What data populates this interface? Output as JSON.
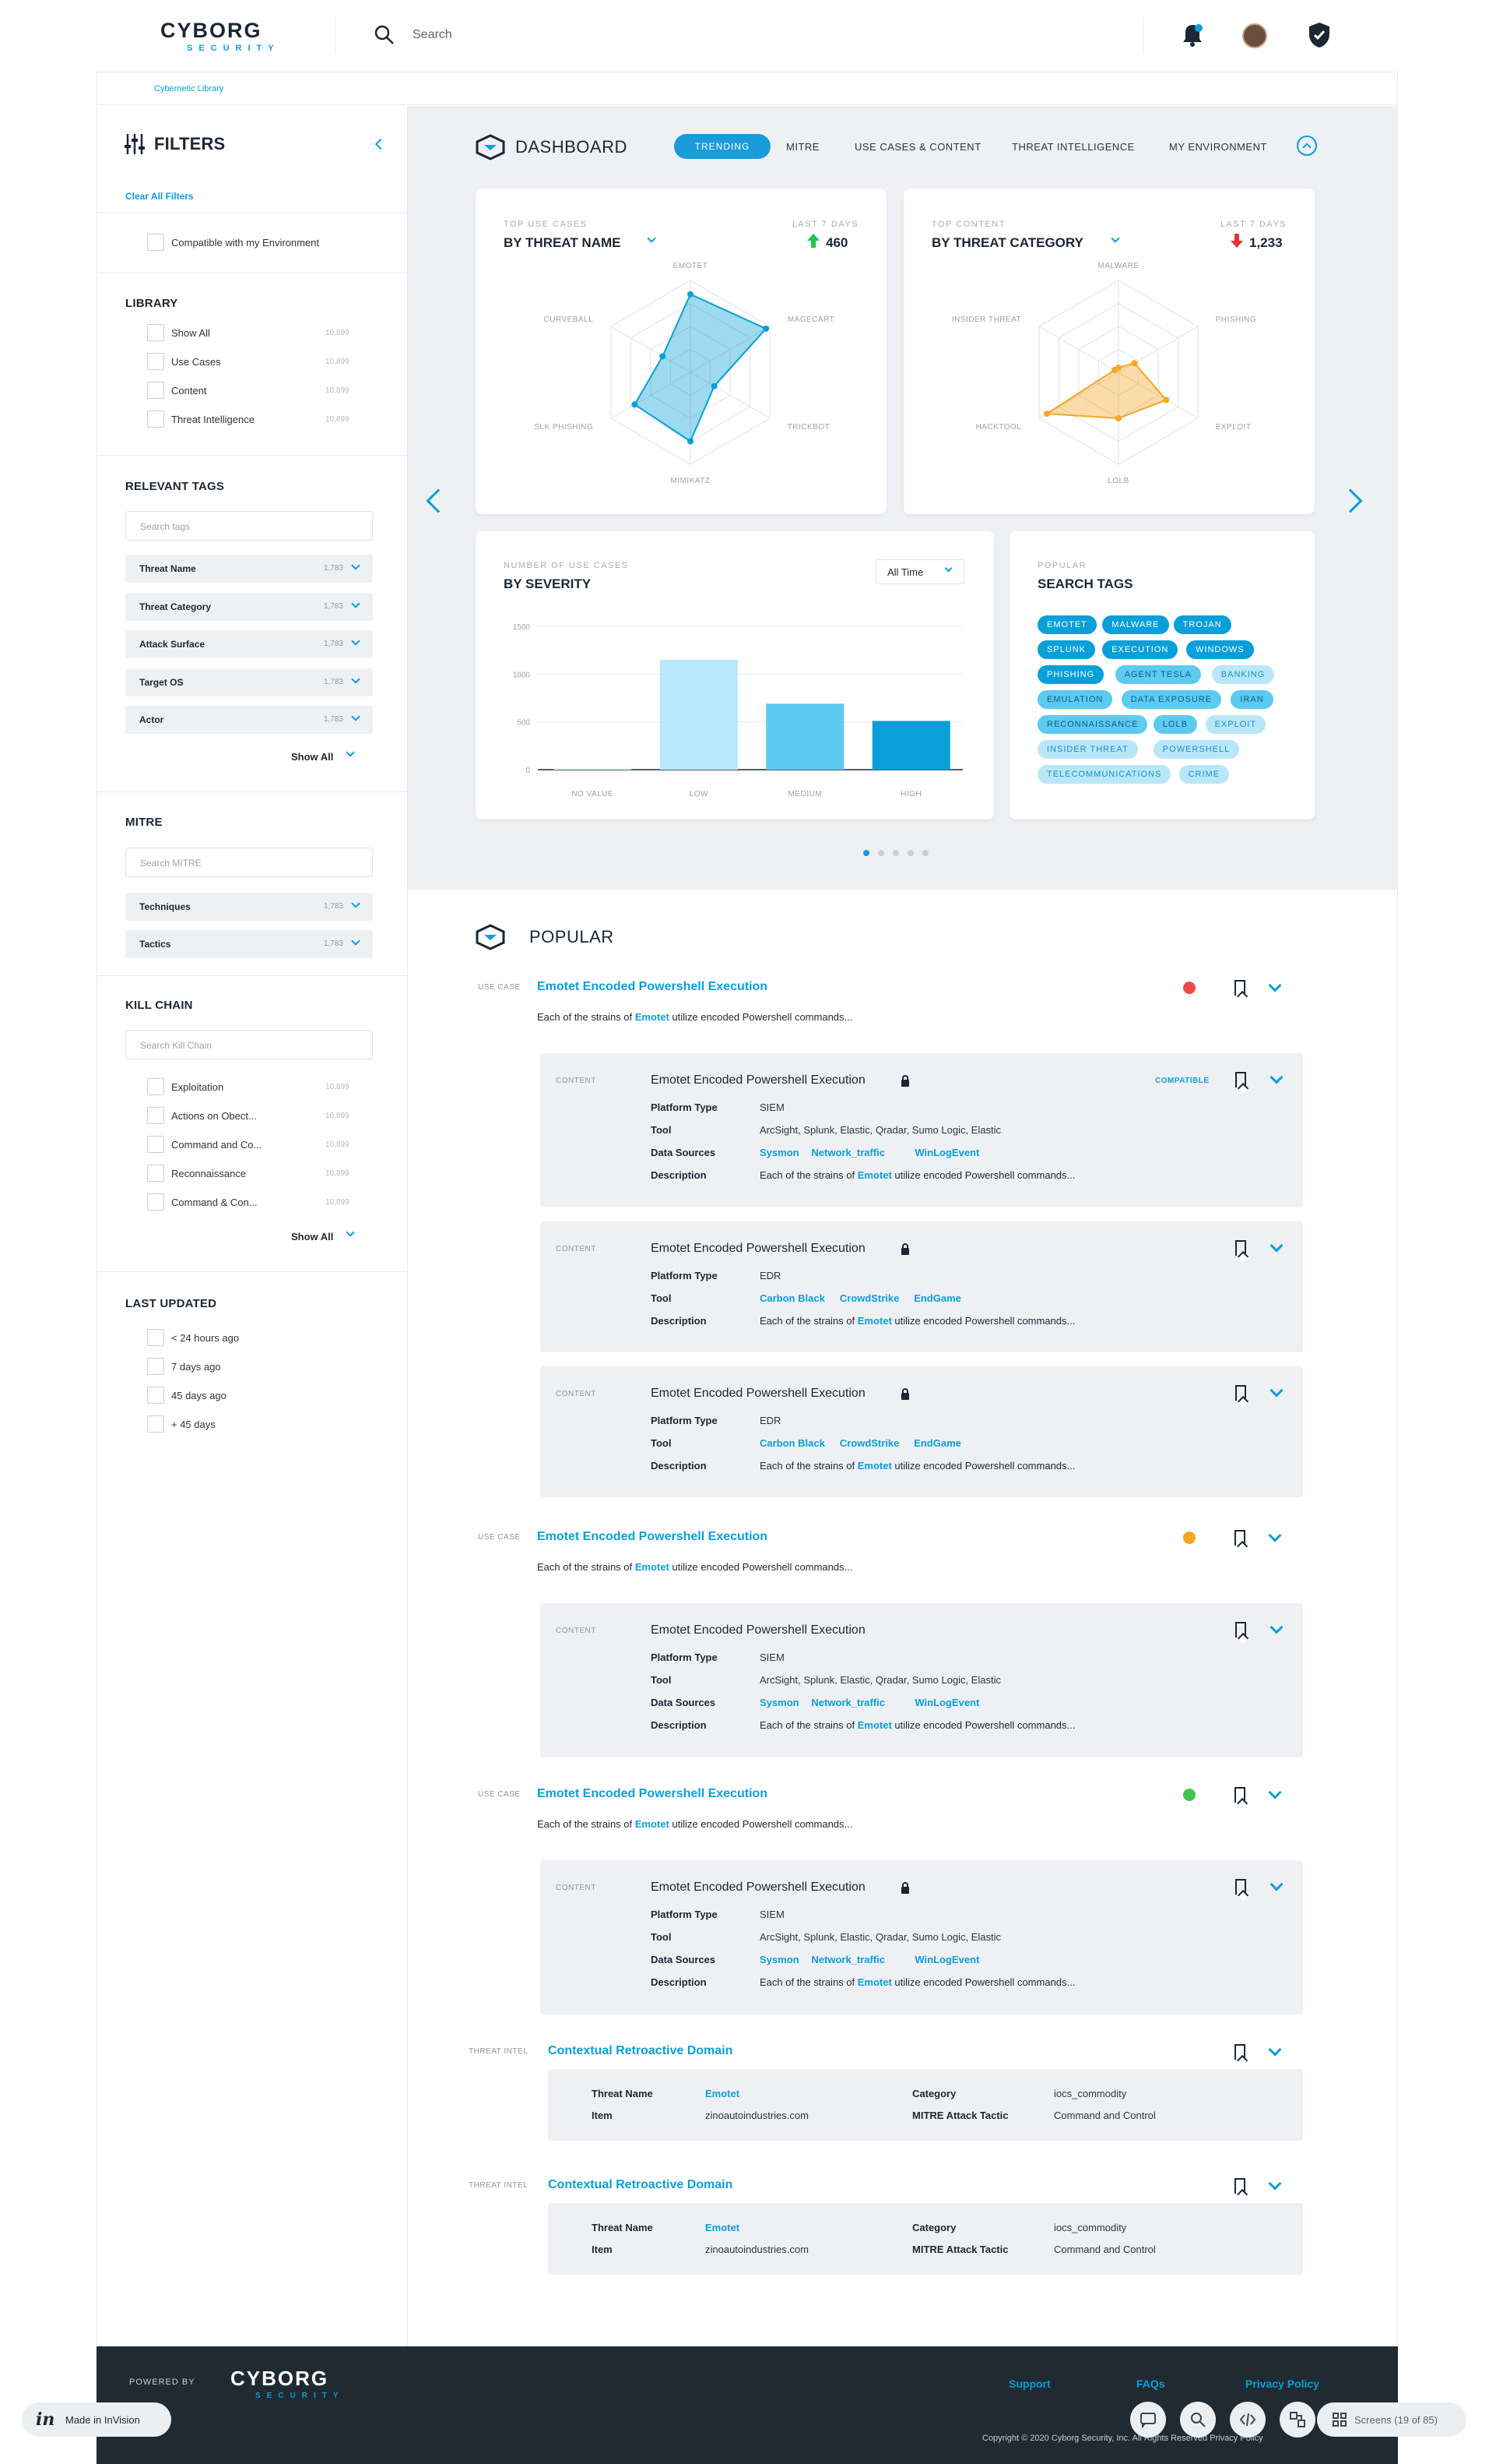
{
  "header": {
    "logo": {
      "word": "CYBORG",
      "sub": "SECURITY"
    },
    "search_placeholder": "Search",
    "icons": [
      "bell-icon",
      "avatar",
      "shield-check-icon"
    ]
  },
  "breadcrumb": "Cybernetic Library",
  "filters": {
    "title": "FILTERS",
    "clear_all": "Clear All Filters",
    "compatible_label": "Compatible with my Environment",
    "library": {
      "title": "LIBRARY",
      "items": [
        {
          "label": "Show All",
          "count": "10,899"
        },
        {
          "label": "Use Cases",
          "count": "10,899"
        },
        {
          "label": "Content",
          "count": "10,899"
        },
        {
          "label": "Threat Intelligence",
          "count": "10,899"
        }
      ]
    },
    "relevant_tags": {
      "title": "RELEVANT TAGS",
      "search_placeholder": "Search tags",
      "rows": [
        {
          "label": "Threat Name",
          "count": "1,783"
        },
        {
          "label": "Threat Category",
          "count": "1,783"
        },
        {
          "label": "Attack Surface",
          "count": "1,783"
        },
        {
          "label": "Target OS",
          "count": "1,783"
        },
        {
          "label": "Actor",
          "count": "1,783"
        }
      ],
      "show_all": "Show All"
    },
    "mitre": {
      "title": "MITRE",
      "search_placeholder": "Search MITRE",
      "rows": [
        {
          "label": "Techniques",
          "count": "1,783"
        },
        {
          "label": "Tactics",
          "count": "1,783"
        }
      ]
    },
    "kill_chain": {
      "title": "KILL CHAIN",
      "search_placeholder": "Search Kill Chain",
      "items": [
        {
          "label": "Exploitation",
          "count": "10,899"
        },
        {
          "label": "Actions on Obect...",
          "count": "10,899"
        },
        {
          "label": "Command and Co...",
          "count": "10,899"
        },
        {
          "label": "Reconnaissance",
          "count": "10,899"
        },
        {
          "label": "Command & Con...",
          "count": "10,899"
        }
      ],
      "show_all": "Show All"
    },
    "last_updated": {
      "title": "LAST UPDATED",
      "items": [
        "< 24 hours ago",
        "7 days ago",
        "45 days ago",
        "+ 45 days"
      ]
    }
  },
  "dashboard": {
    "title": "DASHBOARD",
    "tabs": [
      "TRENDING",
      "MITRE",
      "USE CASES & CONTENT",
      "THREAT INTELLIGENCE",
      "MY ENVIRONMENT"
    ],
    "active_tab": "TRENDING",
    "radar1": {
      "sub": "TOP USE CASES",
      "title": "BY THREAT NAME",
      "period": "LAST 7 DAYS",
      "value": "460",
      "trend": "up",
      "labels": [
        "EMOTET",
        "MAGECART",
        "TRICKBOT",
        "MIMIKATZ",
        "SLK PHISHING",
        "CURVEBALL"
      ],
      "values": [
        0.85,
        0.95,
        0.3,
        0.75,
        0.7,
        0.35
      ],
      "color": "#0a9fd8"
    },
    "radar2": {
      "sub": "TOP CONTENT",
      "title": "BY THREAT CATEGORY",
      "period": "LAST 7 DAYS",
      "value": "1,233",
      "trend": "down",
      "labels": [
        "MALWARE",
        "PHISHING",
        "EXPLOIT",
        "LOLB",
        "HACKTOOL",
        "INSIDER THREAT"
      ],
      "values": [
        0.05,
        0.2,
        0.6,
        0.5,
        0.9,
        0.05
      ],
      "color": "#f5a623"
    },
    "severity": {
      "sub": "NUMBER OF USE CASES",
      "title": "BY SEVERITY",
      "select": "All Time"
    },
    "search_tags": {
      "sub": "POPULAR",
      "title": "SEARCH TAGS",
      "tags": [
        {
          "t": "EMOTET",
          "s": "dark"
        },
        {
          "t": "MALWARE",
          "s": "dark"
        },
        {
          "t": "TROJAN",
          "s": "dark"
        },
        {
          "t": "SPLUNK",
          "s": "dark"
        },
        {
          "t": "EXECUTION",
          "s": "dark"
        },
        {
          "t": "WINDOWS",
          "s": "dark"
        },
        {
          "t": "PHISHING",
          "s": "dark"
        },
        {
          "t": "AGENT TESLA",
          "s": "mid"
        },
        {
          "t": "BANKING",
          "s": "light"
        },
        {
          "t": "EMULATION",
          "s": "mid"
        },
        {
          "t": "DATA EXPOSURE",
          "s": "mid"
        },
        {
          "t": "IRAN",
          "s": "mid"
        },
        {
          "t": "RECONNAISSANCE",
          "s": "mid"
        },
        {
          "t": "LOLB",
          "s": "mid"
        },
        {
          "t": "EXPLOIT",
          "s": "light"
        },
        {
          "t": "INSIDER THREAT",
          "s": "light"
        },
        {
          "t": "POWERSHELL",
          "s": "light"
        },
        {
          "t": "TELECOMMUNICATIONS",
          "s": "light"
        },
        {
          "t": "CRIME",
          "s": "light"
        }
      ]
    }
  },
  "chart_data": {
    "type": "bar",
    "categories": [
      "NO VALUE",
      "LOW",
      "MEDIUM",
      "HIGH"
    ],
    "values": [
      20,
      1150,
      690,
      510
    ],
    "title": "BY SEVERITY",
    "ylim": [
      0,
      1500
    ],
    "yticks": [
      "0",
      "500",
      "1000",
      "1500"
    ],
    "colors": [
      "#e4f6fd",
      "#b7e8fb",
      "#5ccaf1",
      "#0a9fd8"
    ]
  },
  "popular": {
    "title": "POPULAR",
    "use_case_type": "USE CASE",
    "content_type": "CONTENT",
    "threat_type": "THREAT INTEL",
    "compatible": "COMPATIBLE",
    "title_text": "Emotet Encoded Powershell Execution",
    "desc_pre": "Each of the strains of",
    "desc_link": "Emotet",
    "desc_post": "utilize encoded Powershell commands...",
    "labels": {
      "platform": "Platform Type",
      "tool": "Tool",
      "data": "Data Sources",
      "desc": "Description"
    },
    "siem_tools": "ArcSight, Splunk, Elastic, Qradar, Sumo Logic, Elastic",
    "edr_tools": [
      "Carbon Black",
      "CrowdStrike",
      "EndGame"
    ],
    "data_sources": [
      "Sysmon",
      "Network_traffic",
      "WinLogEvent"
    ],
    "platform_siem": "SIEM",
    "platform_edr": "EDR",
    "threat": {
      "title": "Contextual Retroactive Domain",
      "threat_name_label": "Threat Name",
      "threat_name": "Emotet",
      "item_label": "Item",
      "item": "zinoautoindustries.com",
      "category_label": "Category",
      "category": "iocs_commodity",
      "tactic_label": "MITRE Attack Tactic",
      "tactic": "Command and Control"
    },
    "status_colors": [
      "#f04848",
      "#f5a623",
      "#3cc84a"
    ]
  },
  "footer": {
    "powered_by": "POWERED BY",
    "support": "Support",
    "faqs": "FAQs",
    "privacy": "Privacy Policy",
    "copyright": "Copyright © 2020 Cyborg Security, Inc. All Rights Reserved Privacy Policy",
    "invision": "Made in InVision",
    "screens": "Screens (19 of 85)"
  }
}
